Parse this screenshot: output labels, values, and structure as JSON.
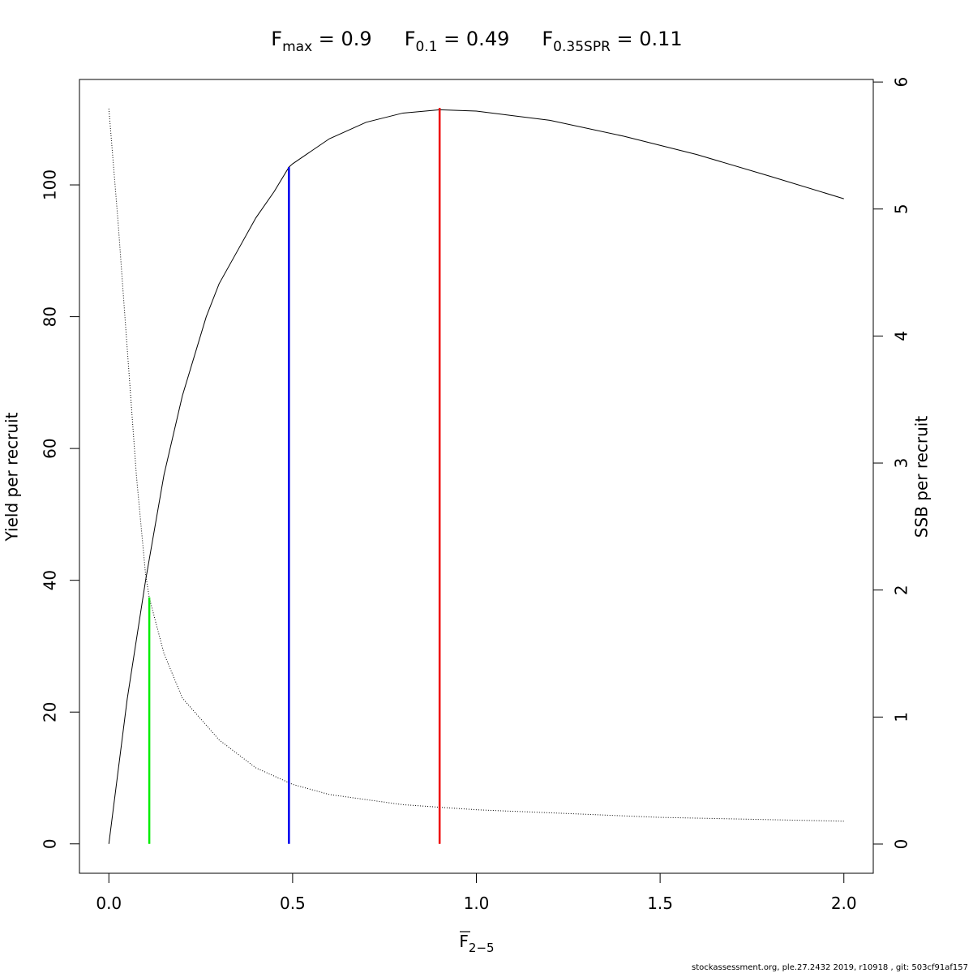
{
  "chart_data": {
    "type": "line",
    "title_parts": [
      {
        "main": "F",
        "sub": "max",
        "text": " = 0.9"
      },
      {
        "main": "F",
        "sub": "0.1",
        "text": " = 0.49"
      },
      {
        "main": "F",
        "sub": "0.35SPR",
        "text": " = 0.11"
      }
    ],
    "x_label": {
      "main": "F",
      "sub": "2−5"
    },
    "y_label": "Yield per recruit",
    "y2_label": "SSB per recruit",
    "footer": "stockassessment.org, ple.27.2432 2019, r10918 , git: 503cf91af157",
    "xlim": [
      -0.08,
      2.08
    ],
    "xticks": [
      {
        "value": 0,
        "label": "0.0"
      },
      {
        "value": 0.5,
        "label": "0.5"
      },
      {
        "value": 1,
        "label": "1.0"
      },
      {
        "value": 1.5,
        "label": "1.5"
      },
      {
        "value": 2,
        "label": "2.0"
      }
    ],
    "ylim": [
      -4.46,
      116
    ],
    "yticks": [
      0,
      20,
      40,
      60,
      80,
      100
    ],
    "y2lim": [
      -0.23,
      6.02
    ],
    "y2ticks": [
      0,
      1,
      2,
      3,
      4,
      5,
      6
    ],
    "series": [
      {
        "name": "Yield per recruit",
        "color": "#000000",
        "dash": "solid",
        "x": [
          0,
          0.05,
          0.1,
          0.15,
          0.2,
          0.265,
          0.3,
          0.35,
          0.4,
          0.45,
          0.49,
          0.5,
          0.6,
          0.7,
          0.8,
          0.9,
          1.0,
          1.2,
          1.4,
          1.6,
          1.8,
          2.0
        ],
        "values": [
          0,
          22,
          40,
          56,
          68,
          80,
          85,
          90,
          95,
          99,
          102.7,
          103.2,
          107,
          109.5,
          110.9,
          111.4,
          111.2,
          109.8,
          107.4,
          104.6,
          101.3,
          97.9
        ]
      },
      {
        "name": "SSB per recruit",
        "color": "#000000",
        "dash": "dotted",
        "axis": "y2",
        "x": [
          0,
          0.025,
          0.05,
          0.075,
          0.1,
          0.11,
          0.15,
          0.2,
          0.3,
          0.4,
          0.5,
          0.6,
          0.8,
          1.0,
          1.25,
          1.5,
          1.75,
          2.0
        ],
        "values": [
          5.79,
          4.9,
          3.9,
          2.9,
          2.12,
          1.94,
          1.5,
          1.15,
          0.82,
          0.6,
          0.47,
          0.39,
          0.31,
          0.27,
          0.24,
          0.21,
          0.195,
          0.18
        ]
      }
    ],
    "reference_lines": [
      {
        "x": 0.9,
        "top": 111.7,
        "color": "#ee0000"
      },
      {
        "x": 0.49,
        "top": 102.7,
        "color": "#0000ee"
      },
      {
        "x": 0.11,
        "top": 37.4,
        "color": "#00ee00"
      }
    ]
  }
}
